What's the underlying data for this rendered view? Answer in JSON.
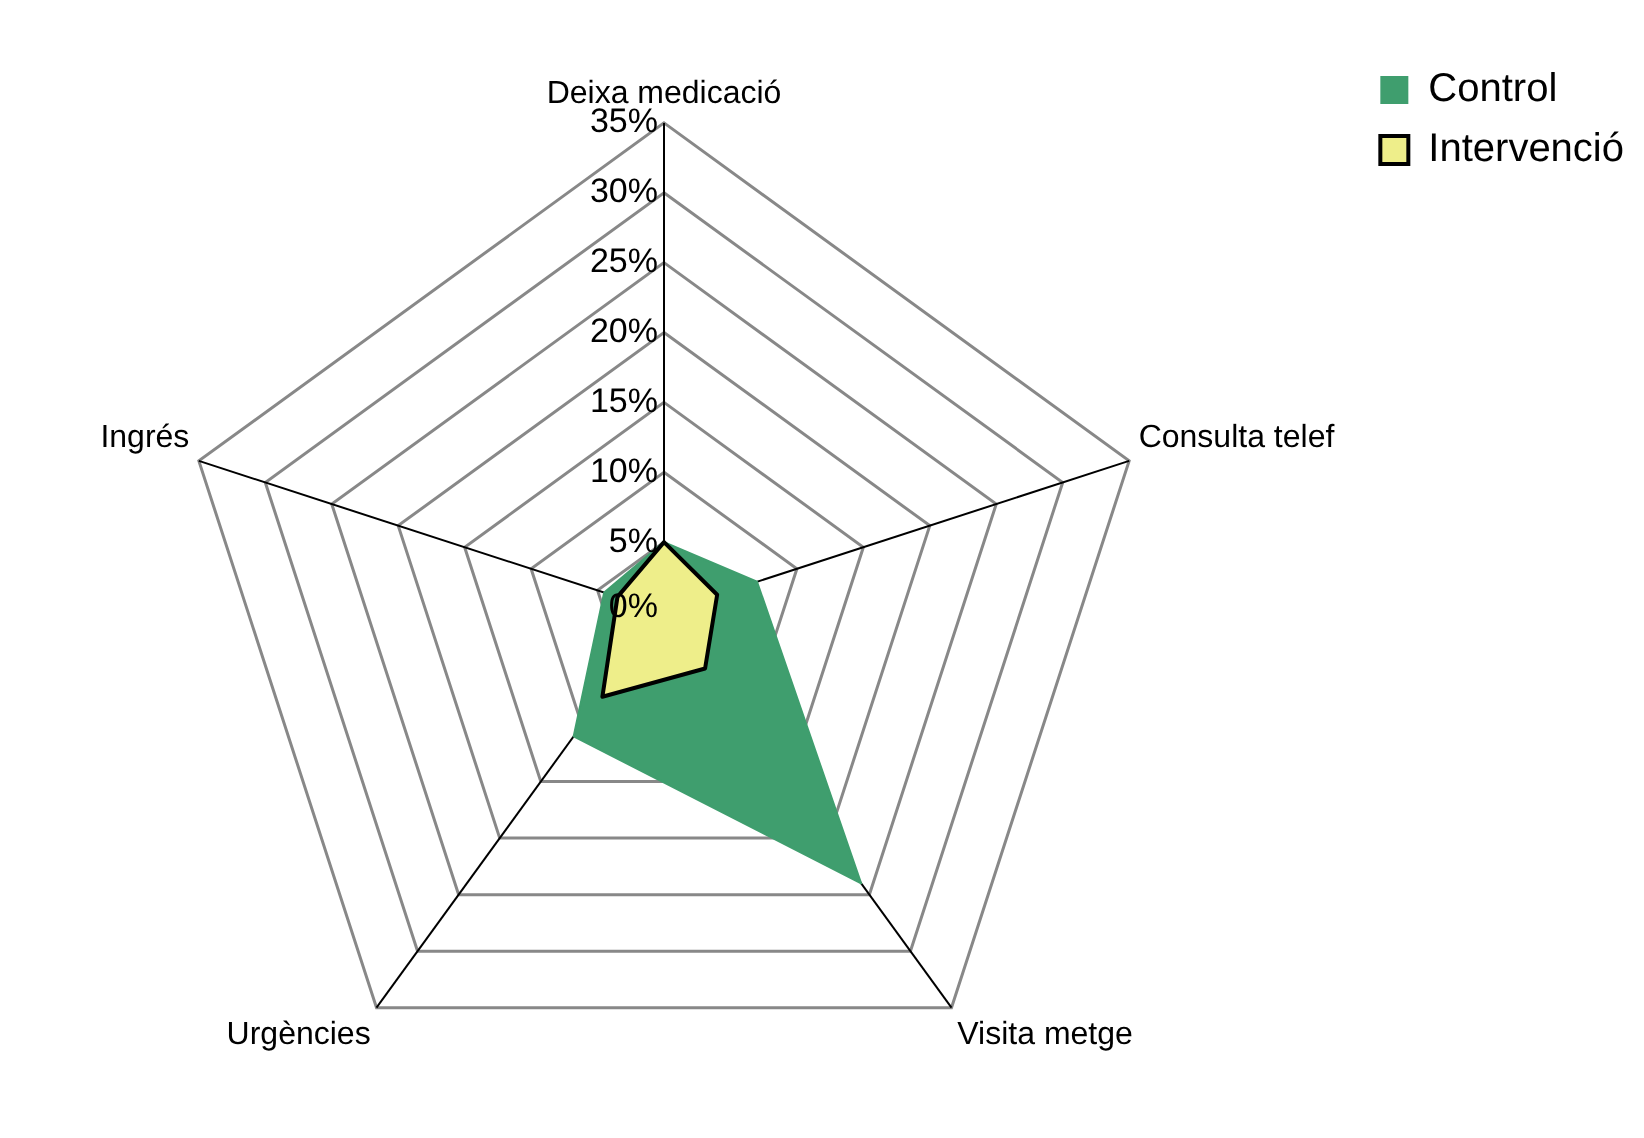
{
  "chart_data": {
    "type": "radar",
    "categories": [
      "Deixa medicació",
      "Consulta telef",
      "Visita metge",
      "Urgències",
      "Ingrés"
    ],
    "series": [
      {
        "name": "Control",
        "color": "#3f9e6e",
        "values": [
          5,
          7,
          24,
          11,
          4.5
        ]
      },
      {
        "name": "Intervenció",
        "color": "#eeee8a",
        "values": [
          5,
          4,
          5,
          7.5,
          3.5
        ]
      }
    ],
    "ylim": [
      0,
      35
    ],
    "yticks": [
      {
        "value": 0,
        "label": "0%"
      },
      {
        "value": 5,
        "label": "5%"
      },
      {
        "value": 10,
        "label": "10%"
      },
      {
        "value": 15,
        "label": "15%"
      },
      {
        "value": 20,
        "label": "20%"
      },
      {
        "value": 25,
        "label": "25%"
      },
      {
        "value": 30,
        "label": "30%"
      },
      {
        "value": 35,
        "label": "35%"
      }
    ],
    "grid": true,
    "legend": "top right",
    "marker": "none"
  }
}
